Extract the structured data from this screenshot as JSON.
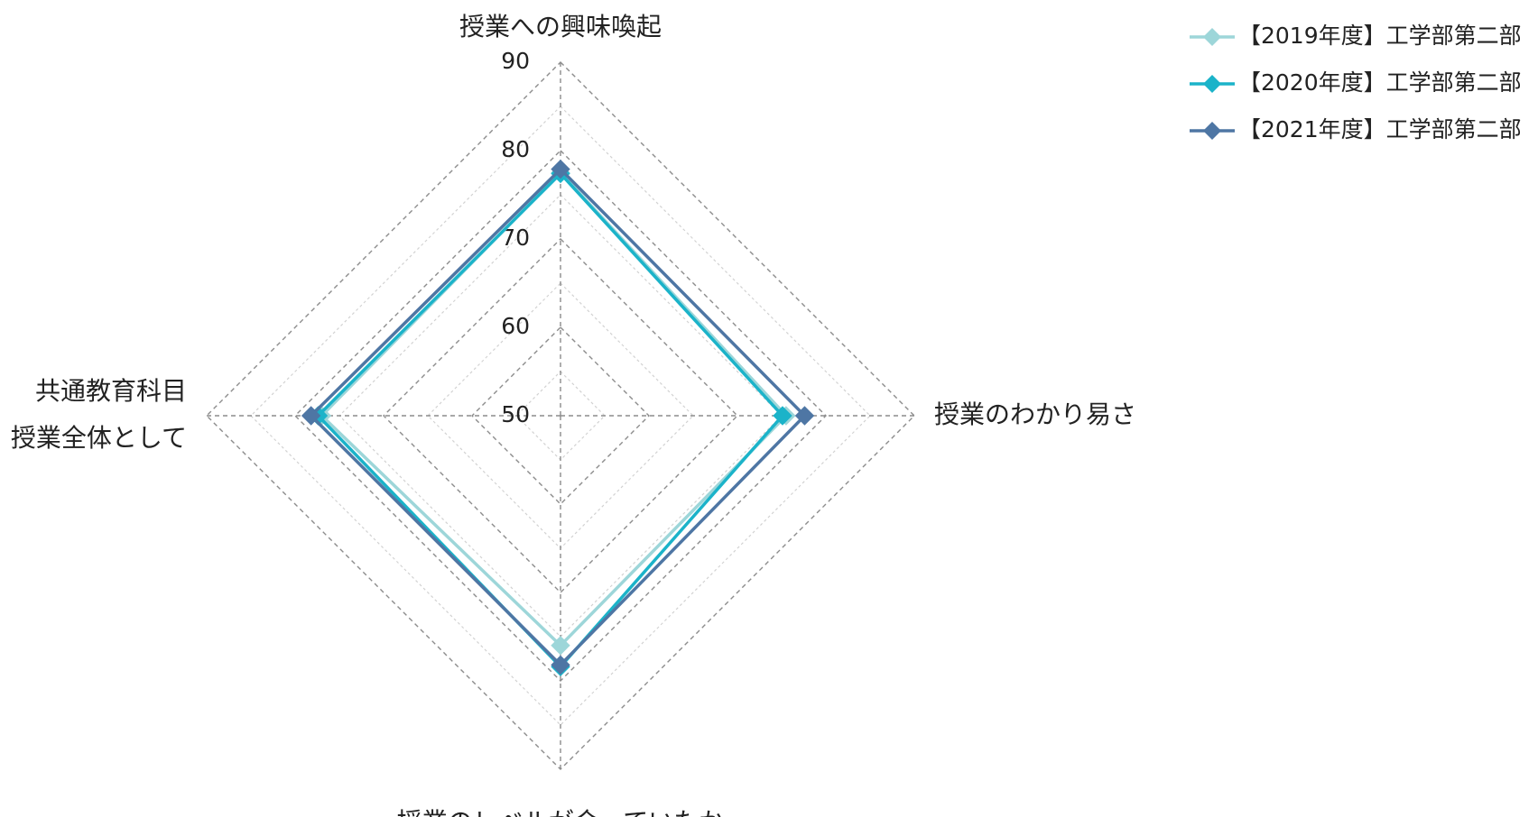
{
  "chart_data": {
    "type": "radar",
    "axes": [
      {
        "label_lines": [
          "授業への興味喚起"
        ]
      },
      {
        "label_lines": [
          "授業のわかり易さ"
        ]
      },
      {
        "label_lines": [
          "授業のレベルが合っていたか"
        ]
      },
      {
        "label_lines": [
          "共通教育科目",
          "授業全体として"
        ]
      }
    ],
    "r_range": [
      50,
      90
    ],
    "ticks": [
      50,
      60,
      70,
      80,
      90
    ],
    "grid": true,
    "legend_position": "top-right",
    "series": [
      {
        "name": "【2019年度】工学部第二部",
        "color": "#9dd6d9",
        "values": [
          77.5,
          75.5,
          76,
          77
        ]
      },
      {
        "name": "【2020年度】工学部第二部",
        "color": "#1bb3c9",
        "values": [
          77.4,
          75.1,
          78.4,
          77.4
        ]
      },
      {
        "name": "【2021年度】工学部第二部",
        "color": "#4e76a4",
        "values": [
          77.9,
          77.6,
          78.2,
          78.2
        ]
      }
    ]
  }
}
